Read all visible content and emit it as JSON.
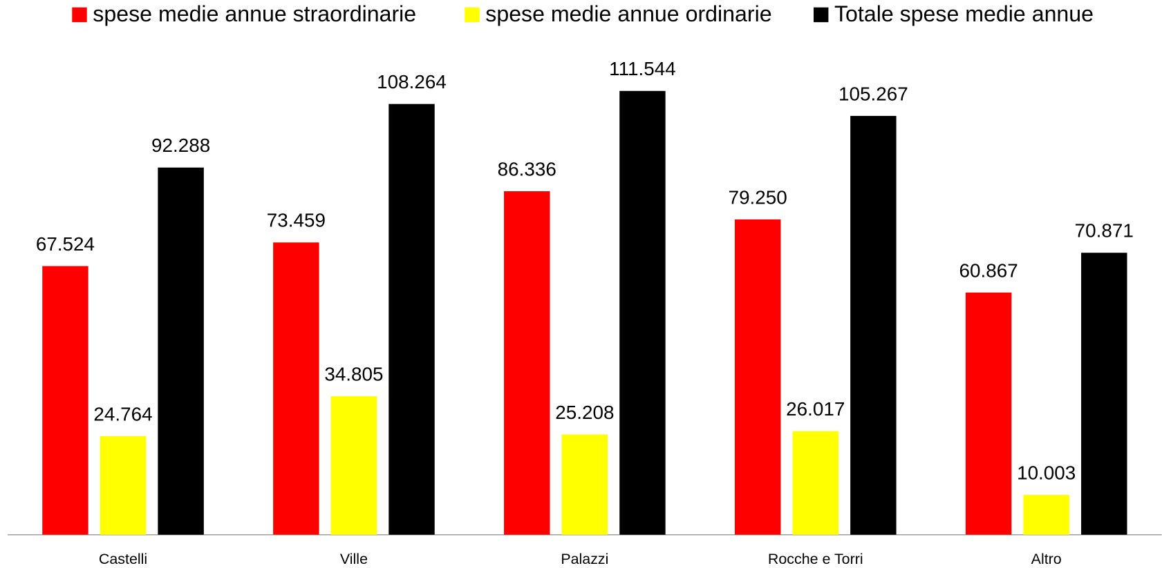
{
  "chart_data": {
    "type": "bar",
    "categories": [
      "Castelli",
      "Ville",
      "Palazzi",
      "Rocche e Torri",
      "Altro"
    ],
    "series": [
      {
        "name": "spese medie annue straordinarie",
        "color": "#ff0000",
        "values": [
          67524,
          73459,
          86336,
          79250,
          60867
        ],
        "value_labels": [
          "67.524",
          "73.459",
          "86.336",
          "79.250",
          "60.867"
        ]
      },
      {
        "name": "spese medie annue ordinarie",
        "color": "#ffff00",
        "values": [
          24764,
          34805,
          25208,
          26017,
          10003
        ],
        "value_labels": [
          "24.764",
          "34.805",
          "25.208",
          "26.017",
          "10.003"
        ]
      },
      {
        "name": "Totale spese medie annue",
        "color": "#000000",
        "values": [
          92288,
          108264,
          111544,
          105267,
          70871
        ],
        "value_labels": [
          "92.288",
          "108.264",
          "111.544",
          "105.267",
          "70.871"
        ]
      }
    ],
    "ylim": [
      0,
      134400
    ],
    "legend": "top"
  }
}
